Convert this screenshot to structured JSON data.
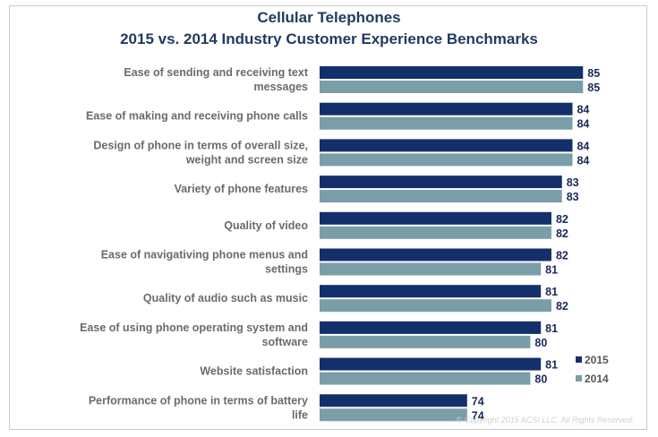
{
  "chart_data": {
    "type": "bar",
    "orientation": "horizontal",
    "title": "Cellular Telephones",
    "subtitle": "2015 vs. 2014 Industry Customer Experience Benchmarks",
    "categories": [
      [
        "Ease of sending and receiving text",
        "messages"
      ],
      [
        "Ease of making and receiving phone calls"
      ],
      [
        "Design of phone in terms of overall size,",
        "weight and screen size"
      ],
      [
        "Variety of phone features"
      ],
      [
        "Quality of video"
      ],
      [
        "Ease of navigativing phone menus and",
        "settings"
      ],
      [
        "Quality of audio such as music"
      ],
      [
        "Ease of using phone operating system and",
        "software"
      ],
      [
        "Website satisfaction"
      ],
      [
        "Performance of phone in terms of battery",
        "life"
      ]
    ],
    "series": [
      {
        "name": "2015",
        "color": "#14306b",
        "values": [
          85,
          84,
          84,
          83,
          82,
          82,
          81,
          81,
          81,
          74
        ]
      },
      {
        "name": "2014",
        "color": "#7a9ea8",
        "values": [
          85,
          84,
          84,
          83,
          82,
          81,
          82,
          80,
          80,
          74
        ]
      }
    ],
    "xlim": [
      60,
      86
    ],
    "legend_position": "bottom-right",
    "grid": false,
    "copyright": "© Copyright 2015 ACSI LLC. All Rights Reserved."
  }
}
